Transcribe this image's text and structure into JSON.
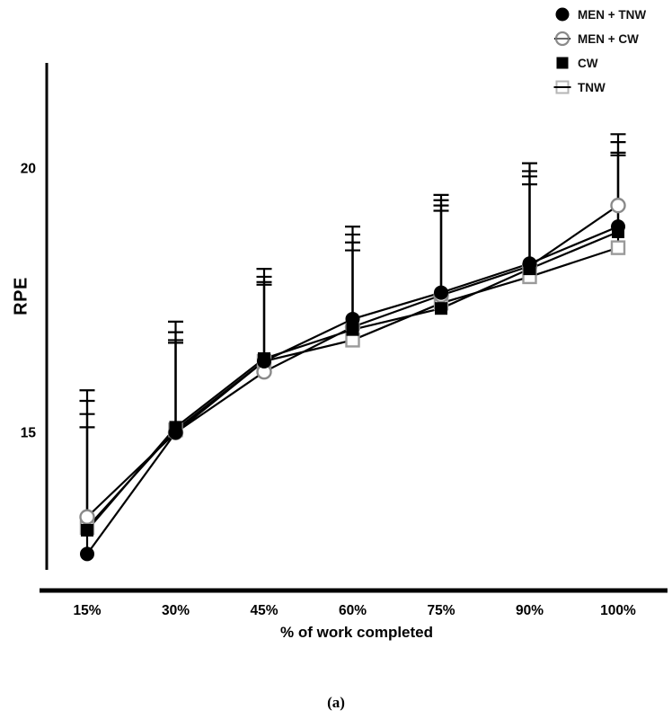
{
  "figure": {
    "caption": "(a)"
  },
  "chart_data": {
    "type": "line",
    "title": "",
    "xlabel": "% of work completed",
    "ylabel": "RPE",
    "categories": [
      "15%",
      "30%",
      "45%",
      "60%",
      "75%",
      "90%",
      "100%"
    ],
    "y_ticks": [
      15,
      20
    ],
    "ylim": [
      12.4,
      22.0
    ],
    "grid": false,
    "legend_position": "top-right",
    "error_bars": "upper only, capped",
    "series": [
      {
        "name": "MEN + TNW",
        "marker": "filled-circle",
        "color": "#000000",
        "values": [
          12.7,
          15.0,
          16.35,
          17.15,
          17.65,
          18.2,
          18.9
        ],
        "upper_error": [
          15.8,
          17.1,
          18.1,
          18.9,
          19.5,
          20.1,
          20.65
        ]
      },
      {
        "name": "MEN + CW",
        "marker": "open-circle",
        "color": "#000000",
        "values": [
          13.4,
          15.0,
          16.15,
          17.0,
          17.6,
          18.15,
          19.3
        ],
        "upper_error": [
          15.6,
          16.9,
          17.95,
          18.75,
          19.4,
          19.95,
          20.5
        ]
      },
      {
        "name": "CW",
        "marker": "filled-square",
        "color": "#000000",
        "values": [
          13.15,
          15.1,
          16.4,
          16.95,
          17.35,
          18.1,
          18.8
        ],
        "upper_error": [
          15.35,
          16.75,
          17.85,
          18.6,
          19.3,
          19.85,
          20.3
        ]
      },
      {
        "name": "TNW",
        "marker": "open-square",
        "color": "#000000",
        "values": [
          13.2,
          15.05,
          16.35,
          16.75,
          17.45,
          17.95,
          18.5
        ],
        "upper_error": [
          15.1,
          16.7,
          17.8,
          18.45,
          19.2,
          19.7,
          20.25
        ]
      }
    ]
  }
}
